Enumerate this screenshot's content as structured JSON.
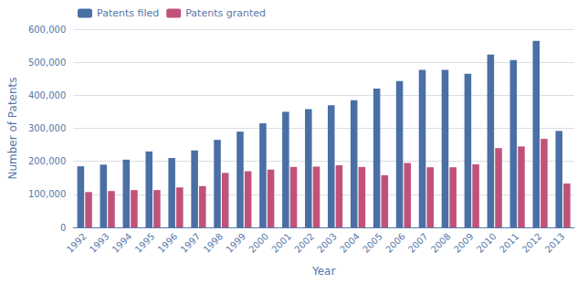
{
  "chart_data": {
    "type": "bar",
    "categories": [
      "1992",
      "1993",
      "1994",
      "1995",
      "1996",
      "1997",
      "1998",
      "1999",
      "2000",
      "2001",
      "2002",
      "2003",
      "2004",
      "2005",
      "2006",
      "2007",
      "2008",
      "2009",
      "2010",
      "2011",
      "2012",
      "2013"
    ],
    "series": [
      {
        "name": "Patents filed",
        "color": "#4A6FA5",
        "values": [
          185000,
          190000,
          205000,
          230000,
          210000,
          233000,
          265000,
          290000,
          315000,
          350000,
          358000,
          370000,
          385000,
          420000,
          443000,
          477000,
          477000,
          465000,
          523000,
          507000,
          565000,
          292000
        ]
      },
      {
        "name": "Patents granted",
        "color": "#C0527A",
        "values": [
          107000,
          110000,
          113000,
          113000,
          121000,
          125000,
          165000,
          170000,
          175000,
          183000,
          184000,
          188000,
          183000,
          158000,
          195000,
          182000,
          182000,
          191000,
          240000,
          245000,
          268000,
          133000
        ]
      }
    ],
    "xlabel": "Year",
    "ylabel": "Number of Patents",
    "ylim": [
      0,
      600000
    ],
    "yticks": [
      0,
      {
        "value": 100000,
        "label": "100,000"
      },
      {
        "value": 200000,
        "label": "200,000"
      },
      {
        "value": 300000,
        "label": "300,000"
      },
      {
        "value": 400000,
        "label": "400,000"
      },
      {
        "value": 500000,
        "label": "500,000"
      },
      {
        "value": 600000,
        "label": "600,000"
      }
    ],
    "grid": true,
    "legend": "upper left"
  }
}
